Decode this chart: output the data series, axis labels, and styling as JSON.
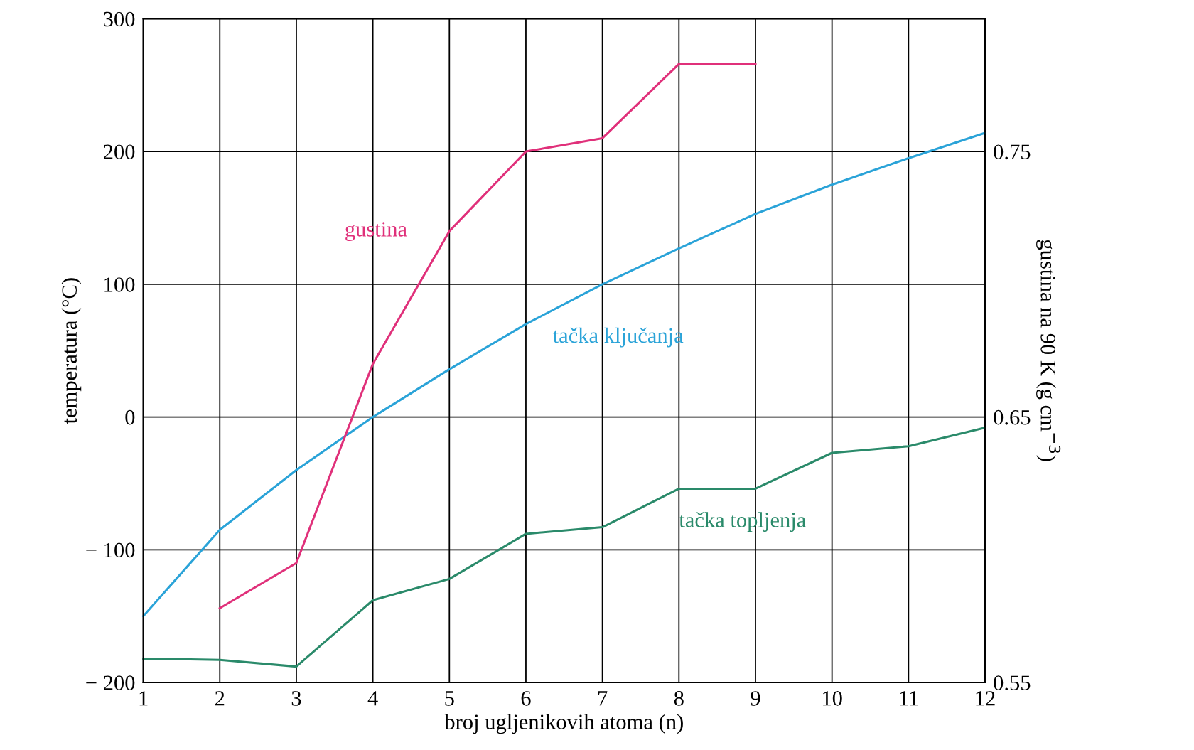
{
  "chart_data": {
    "type": "line",
    "xlabel": "broj ugljenikovih atoma (n)",
    "ylabel": "temperatura (°C)",
    "y2label": "gustina na 90 K (g cm$^{−3}$)",
    "x": [
      1,
      2,
      3,
      4,
      5,
      6,
      7,
      8,
      9,
      10,
      11,
      12
    ],
    "series": [
      {
        "name": "gustina",
        "color": "#e0307a",
        "axis": "y2",
        "x": [
          2,
          3,
          4,
          5,
          6,
          7,
          8,
          9
        ],
        "values": [
          0.578,
          0.595,
          0.67,
          0.72,
          0.75,
          0.755,
          0.783,
          0.783
        ]
      },
      {
        "name": "tačka ključanja",
        "color": "#2aa3d8",
        "values": [
          -150,
          -85,
          -40,
          0,
          36,
          70,
          100,
          127,
          153,
          175,
          195,
          214
        ]
      },
      {
        "name": "tačka topljenja",
        "color": "#2a8a6a",
        "values": [
          -182,
          -183,
          -188,
          -138,
          -122,
          -88,
          -83,
          -54,
          -54,
          -27,
          -22,
          -8
        ]
      }
    ],
    "xlim": [
      1,
      12
    ],
    "xticks": [
      1,
      2,
      3,
      4,
      5,
      6,
      7,
      8,
      9,
      10,
      11,
      12
    ],
    "ylim": [
      -200,
      300
    ],
    "yticks": [
      {
        "value": -200,
        "label": "− 200"
      },
      {
        "value": -100,
        "label": "− 100"
      },
      0,
      100,
      200,
      300
    ],
    "y2lim": [
      0.55,
      0.8
    ],
    "y2ticks": [
      0.55,
      0.65,
      0.75
    ],
    "grid": true,
    "legend": false,
    "marker": "none",
    "line_style": "solid"
  }
}
